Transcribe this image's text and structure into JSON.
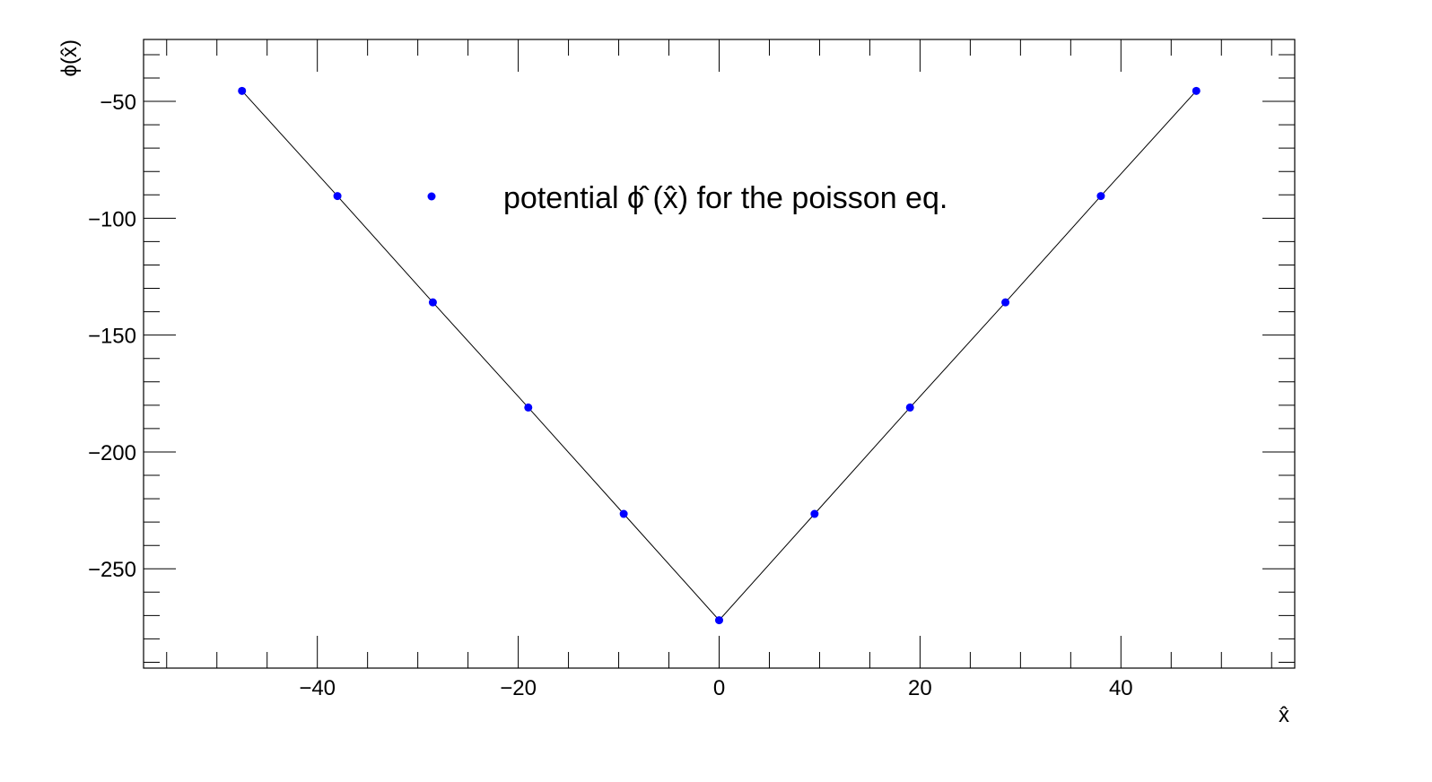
{
  "chart_data": {
    "type": "scatter",
    "title": "",
    "xlabel": "x̂",
    "ylabel": "ϕ(x̂)",
    "xlim": [
      -57.3,
      57.3
    ],
    "ylim": [
      -292.5,
      -23.5
    ],
    "xticks": [
      {
        "value": -40,
        "label": "−40"
      },
      {
        "value": -20,
        "label": "−20"
      },
      {
        "value": 0,
        "label": "0"
      },
      {
        "value": 20,
        "label": "20"
      },
      {
        "value": 40,
        "label": "40"
      }
    ],
    "yticks": [
      {
        "value": -50,
        "label": "−50"
      },
      {
        "value": -100,
        "label": "−100"
      },
      {
        "value": -150,
        "label": "−150"
      },
      {
        "value": -200,
        "label": "−200"
      },
      {
        "value": -250,
        "label": "−250"
      }
    ],
    "x_minor_step": 5,
    "y_minor_step": 10,
    "grid": false,
    "legend_position": "top-center",
    "series": [
      {
        "name": "potential ϕ̂ (x̂) for the poisson eq.",
        "color": "#0000ff",
        "line_color": "#000000",
        "marker": "circle",
        "connected": true,
        "x": [
          -47.5,
          -38.0,
          -28.5,
          -19.0,
          -9.5,
          0.0,
          9.5,
          19.0,
          28.5,
          38.0,
          47.5
        ],
        "y": [
          -45.5,
          -90.5,
          -136.0,
          -181.0,
          -226.5,
          -272.0,
          -226.5,
          -181.0,
          -136.0,
          -90.5,
          -45.5
        ]
      }
    ]
  }
}
